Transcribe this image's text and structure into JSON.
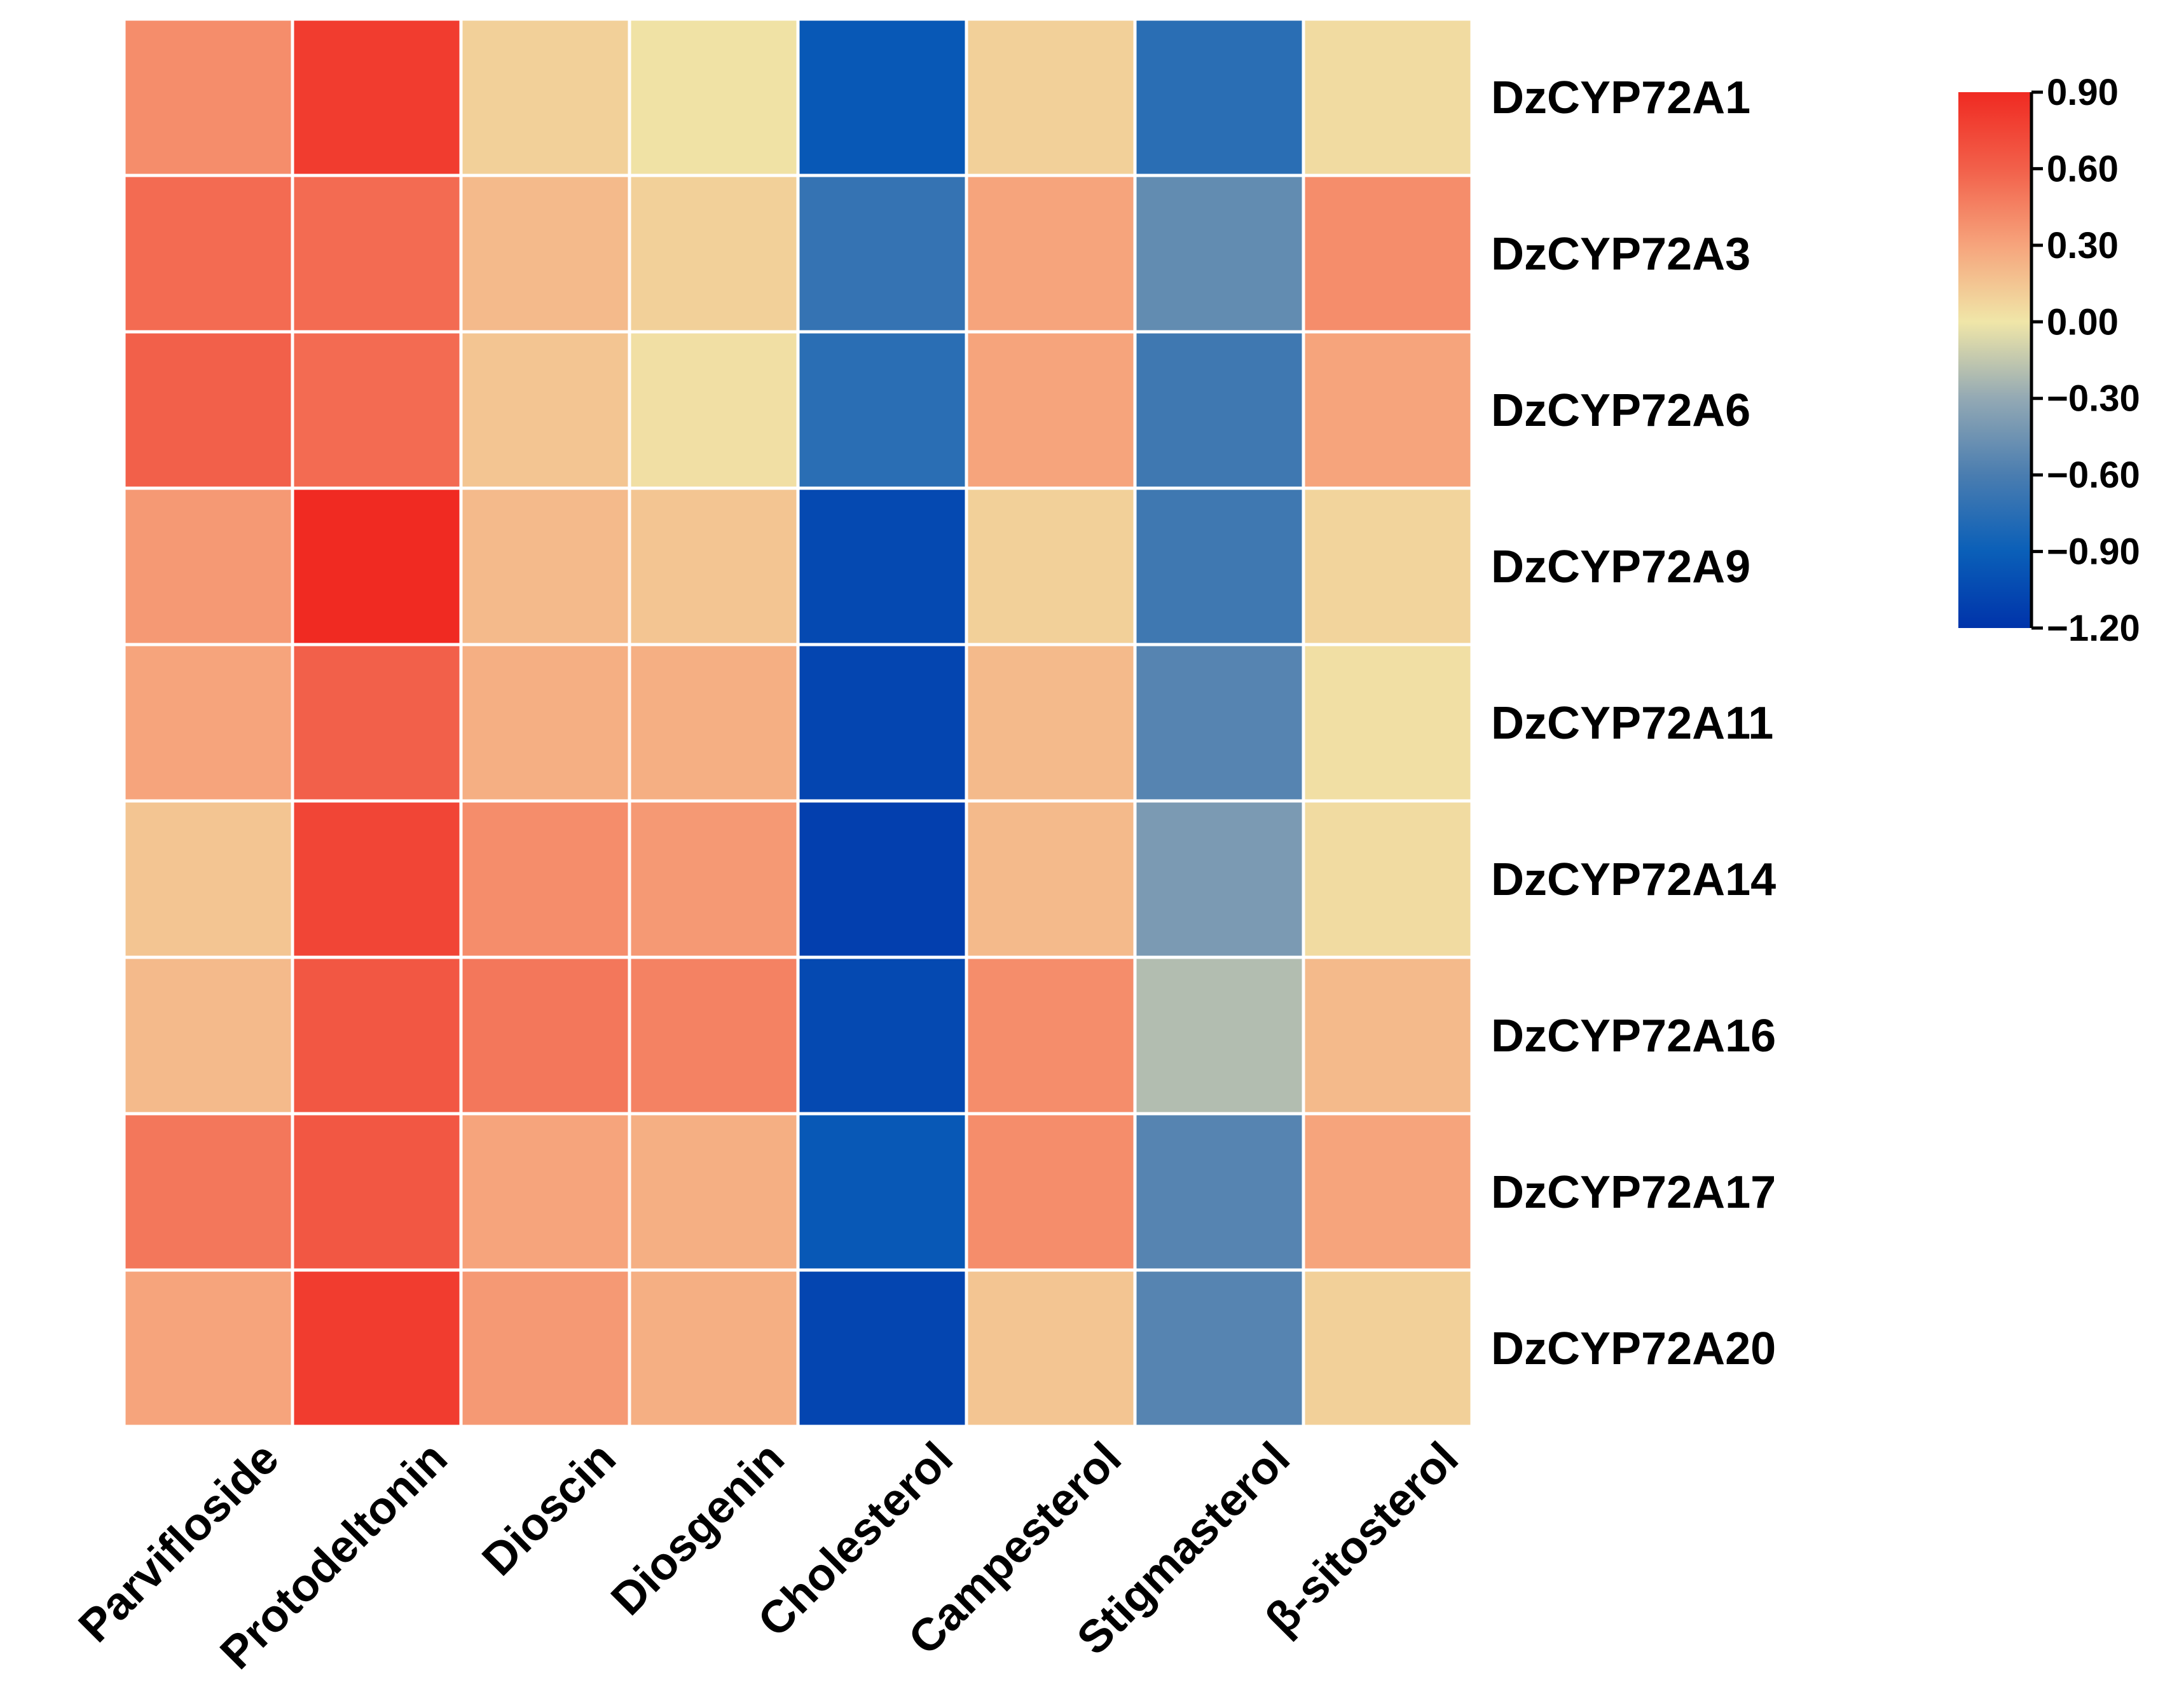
{
  "chart_data": {
    "type": "heatmap",
    "title": "",
    "columns": [
      "Parvifloside",
      "Protodeltonin",
      "Dioscin",
      "Diosgenin",
      "Cholesterol",
      "Campesterol",
      "Stigmasterol",
      "β-sitosterol"
    ],
    "rows": [
      "DzCYP72A1",
      "DzCYP72A3",
      "DzCYP72A6",
      "DzCYP72A9",
      "DzCYP72A11",
      "DzCYP72A14",
      "DzCYP72A16",
      "DzCYP72A17",
      "DzCYP72A20"
    ],
    "values": [
      [
        0.4,
        0.8,
        0.1,
        0.02,
        -0.95,
        0.1,
        -0.75,
        0.05
      ],
      [
        0.55,
        0.55,
        0.2,
        0.1,
        -0.7,
        0.3,
        -0.5,
        0.4
      ],
      [
        0.6,
        0.55,
        0.15,
        0.03,
        -0.75,
        0.3,
        -0.65,
        0.3
      ],
      [
        0.35,
        0.9,
        0.2,
        0.15,
        -1.05,
        0.1,
        -0.65,
        0.08
      ],
      [
        0.3,
        0.6,
        0.25,
        0.25,
        -1.08,
        0.2,
        -0.55,
        0.03
      ],
      [
        0.15,
        0.75,
        0.4,
        0.35,
        -1.12,
        0.2,
        -0.4,
        0.05
      ],
      [
        0.2,
        0.65,
        0.5,
        0.45,
        -1.05,
        0.4,
        -0.2,
        0.2
      ],
      [
        0.5,
        0.65,
        0.3,
        0.25,
        -0.95,
        0.4,
        -0.55,
        0.3
      ],
      [
        0.3,
        0.8,
        0.35,
        0.25,
        -1.08,
        0.15,
        -0.55,
        0.1
      ]
    ],
    "colorbar": {
      "min": -1.2,
      "max": 0.9,
      "ticks": [
        "0.90",
        "0.60",
        "0.30",
        "0.00",
        "−0.30",
        "−0.60",
        "−0.90",
        "−1.20"
      ],
      "tick_values": [
        0.9,
        0.6,
        0.3,
        0.0,
        -0.3,
        -0.6,
        -0.9,
        -1.2
      ],
      "position": "right"
    },
    "colormap": {
      "stops": [
        {
          "value": -1.2,
          "color": "#0033aa"
        },
        {
          "value": -0.9,
          "color": "#0a5fb8"
        },
        {
          "value": -0.6,
          "color": "#4a7db0"
        },
        {
          "value": -0.3,
          "color": "#93a9b4"
        },
        {
          "value": 0.0,
          "color": "#f0e6a8"
        },
        {
          "value": 0.3,
          "color": "#f6a47c"
        },
        {
          "value": 0.6,
          "color": "#f2604a"
        },
        {
          "value": 0.9,
          "color": "#f02a22"
        }
      ]
    }
  }
}
